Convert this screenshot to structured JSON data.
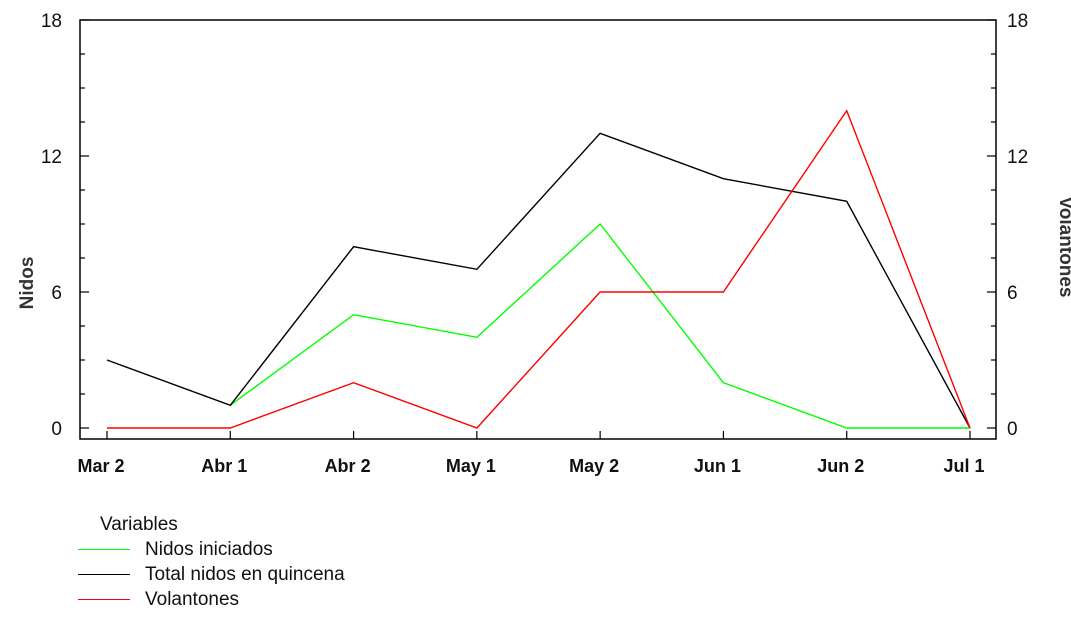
{
  "chart_data": {
    "type": "line",
    "categories": [
      "Mar 2",
      "Abr 1",
      "Abr 2",
      "May 1",
      "May 2",
      "Jun 1",
      "Jun 2",
      "Jul 1"
    ],
    "ylabel": "Nidos",
    "y2label": "Volantones",
    "ylim": [
      0,
      18
    ],
    "y2lim": [
      0,
      18
    ],
    "yticks": [
      "0",
      "6",
      "12",
      "18"
    ],
    "y2ticks": [
      "0",
      "6",
      "12",
      "18"
    ],
    "grid": false,
    "legend_position": "bottom-left",
    "legend_title": "Variables",
    "series": [
      {
        "name": "Nidos iniciados",
        "color": "#00ff00",
        "axis": "left",
        "values": [
          null,
          1,
          5,
          4,
          9,
          2,
          0,
          0
        ]
      },
      {
        "name": "Total nidos en quincena",
        "color": "#000000",
        "axis": "left",
        "values": [
          3,
          1,
          8,
          7,
          13,
          11,
          10,
          0
        ]
      },
      {
        "name": "Volantones",
        "color": "#ff0000",
        "axis": "right",
        "values": [
          0,
          0,
          2,
          0,
          6,
          6,
          14,
          0
        ]
      }
    ]
  }
}
